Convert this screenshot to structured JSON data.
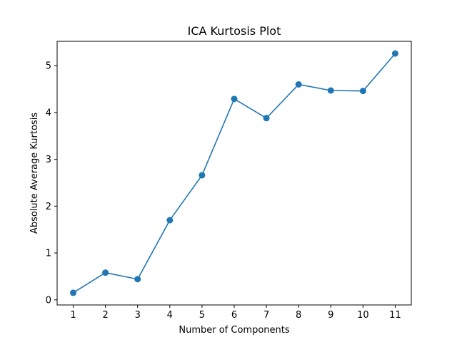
{
  "chart_data": {
    "type": "line",
    "title": "ICA Kurtosis Plot",
    "xlabel": "Number of Components",
    "ylabel": "Absolute Average Kurtosis",
    "x": [
      1,
      2,
      3,
      4,
      5,
      6,
      7,
      8,
      9,
      10,
      11
    ],
    "series": [
      {
        "values": [
          0.15,
          0.58,
          0.44,
          1.7,
          2.66,
          4.29,
          3.88,
          4.6,
          4.47,
          4.46,
          5.26
        ],
        "color": "#1f77b4",
        "marker": "circle"
      }
    ],
    "xticks": [
      "1",
      "2",
      "3",
      "4",
      "5",
      "6",
      "7",
      "8",
      "9",
      "10",
      "11"
    ],
    "yticks": [
      "0",
      "1",
      "2",
      "3",
      "4",
      "5"
    ],
    "xlim": [
      0.5,
      11.5
    ],
    "ylim": [
      -0.11,
      5.52
    ],
    "grid": false
  }
}
